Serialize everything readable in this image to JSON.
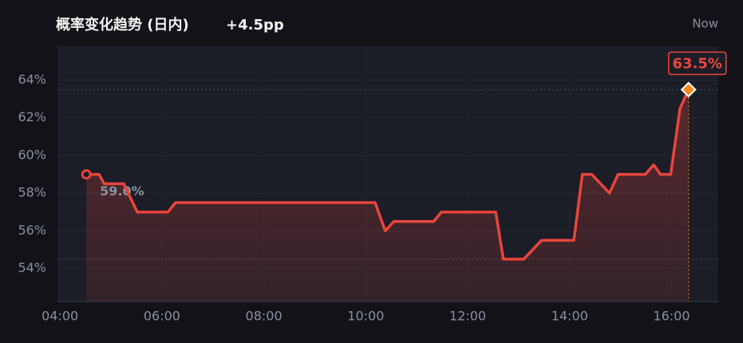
{
  "chart_data": {
    "type": "line",
    "title": "概率变化趋势 (日内)",
    "subtitle": "+4.5pp",
    "corner_label": "Now",
    "x": [
      "04:31",
      "04:40",
      "04:46",
      "04:52",
      "05:01",
      "05:15",
      "05:31",
      "06:07",
      "06:16",
      "10:11",
      "10:23",
      "10:33",
      "11:20",
      "11:29",
      "12:33",
      "12:42",
      "13:06",
      "13:27",
      "14:05",
      "14:15",
      "14:26",
      "14:47",
      "14:57",
      "15:29",
      "15:39",
      "15:47",
      "15:59",
      "16:10",
      "16:20"
    ],
    "values": [
      59.0,
      59.0,
      59.0,
      58.5,
      58.5,
      58.5,
      57.0,
      57.0,
      57.5,
      57.5,
      56.0,
      56.5,
      56.5,
      57.0,
      57.0,
      54.5,
      54.5,
      55.5,
      55.5,
      59.0,
      59.0,
      58.0,
      59.0,
      59.0,
      59.5,
      59.0,
      59.0,
      62.5,
      63.5
    ],
    "color": "#e8453c",
    "xlim": [
      "03:57",
      "16:55"
    ],
    "xticks": [
      "04:00",
      "06:00",
      "08:00",
      "10:00",
      "12:00",
      "14:00",
      "16:00"
    ],
    "ylim": [
      52.25,
      65.8
    ],
    "yticks": [
      {
        "value": 54,
        "label": "54%"
      },
      {
        "value": 56,
        "label": "56%"
      },
      {
        "value": 58,
        "label": "58%"
      },
      {
        "value": 60,
        "label": "60%"
      },
      {
        "value": 62,
        "label": "62%"
      },
      {
        "value": 64,
        "label": "64%"
      }
    ],
    "grid": true,
    "reference_lines": [
      63.5,
      54.5
    ],
    "annotations": [
      {
        "text": "59.0%",
        "x": "04:31",
        "y": 59.0
      },
      {
        "text": "63.5%",
        "x": "16:20",
        "y": 63.5
      }
    ]
  }
}
